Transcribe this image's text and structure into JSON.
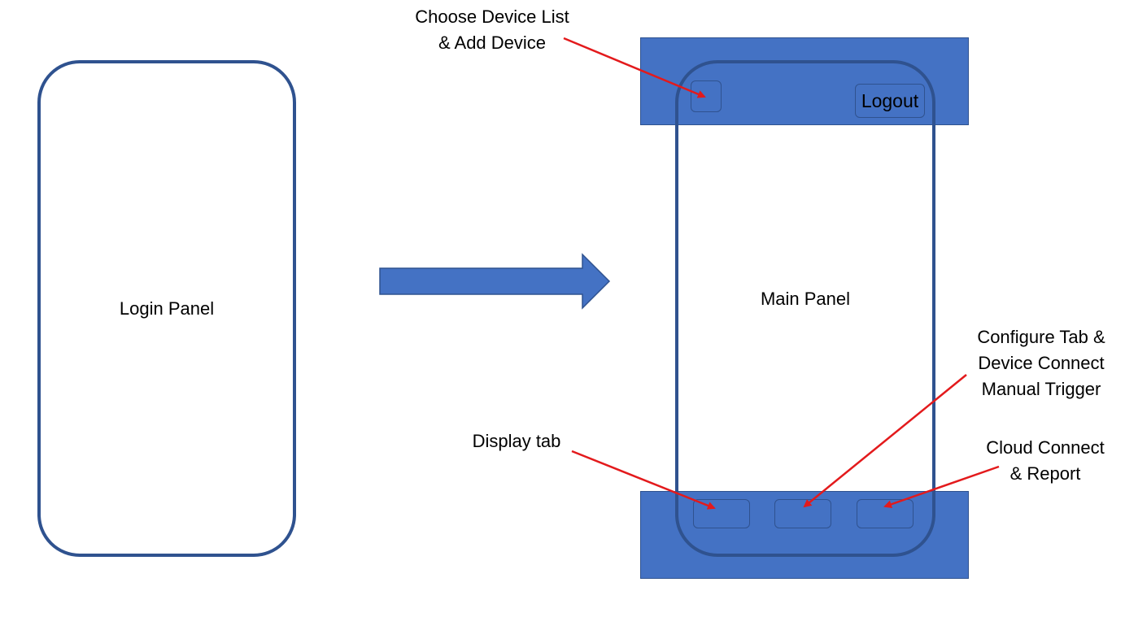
{
  "login_panel": {
    "label": "Login Panel"
  },
  "main_panel": {
    "label": "Main Panel",
    "top_bar": {
      "logout_label": "Logout"
    }
  },
  "annotations": {
    "choose_device": [
      "Choose Device List",
      "& Add Device"
    ],
    "configure_tab": [
      "Configure Tab &",
      "Device Connect",
      "Manual Trigger"
    ],
    "display_tab": [
      "Display tab"
    ],
    "cloud_connect": [
      "Cloud Connect",
      "& Report"
    ]
  },
  "colors": {
    "bar_fill": "#4472c4",
    "outline": "#2f528f",
    "annotation_arrow": "#e31a1c",
    "flow_arrow": "#4472c4"
  }
}
